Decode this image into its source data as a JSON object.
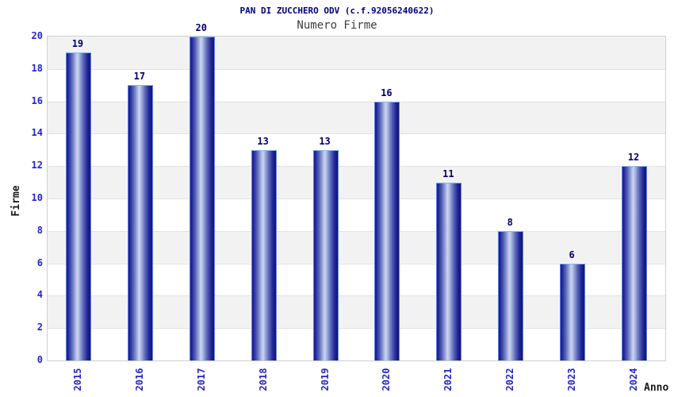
{
  "chart_data": {
    "type": "bar",
    "title": "PAN DI ZUCCHERO ODV (c.f.92056240622)",
    "subtitle": "Numero Firme",
    "xlabel": "Anno",
    "ylabel": "Firme",
    "categories": [
      "2015",
      "2016",
      "2017",
      "2018",
      "2019",
      "2020",
      "2021",
      "2022",
      "2023",
      "2024"
    ],
    "values": [
      19,
      17,
      20,
      13,
      13,
      16,
      11,
      8,
      6,
      12
    ],
    "ylim": [
      0,
      20
    ],
    "yticks": [
      0,
      2,
      4,
      6,
      8,
      10,
      12,
      14,
      16,
      18,
      20
    ],
    "grid": "horizontal",
    "legend": "none",
    "colors": {
      "title": "#00007d",
      "subtitle": "#3d3d3d",
      "tick_label": "#2424cc",
      "value_label": "#00006b",
      "axis_title": "#1a1a1a",
      "bar_dark": "#16167d",
      "bar_light": "#ccd5f1",
      "bar_border": "#5c86dd",
      "band_gray": "#f2f2f2",
      "band_white": "#ffffff",
      "gridline": "#e2e2e2",
      "plot_border": "#cfcfcf"
    }
  }
}
